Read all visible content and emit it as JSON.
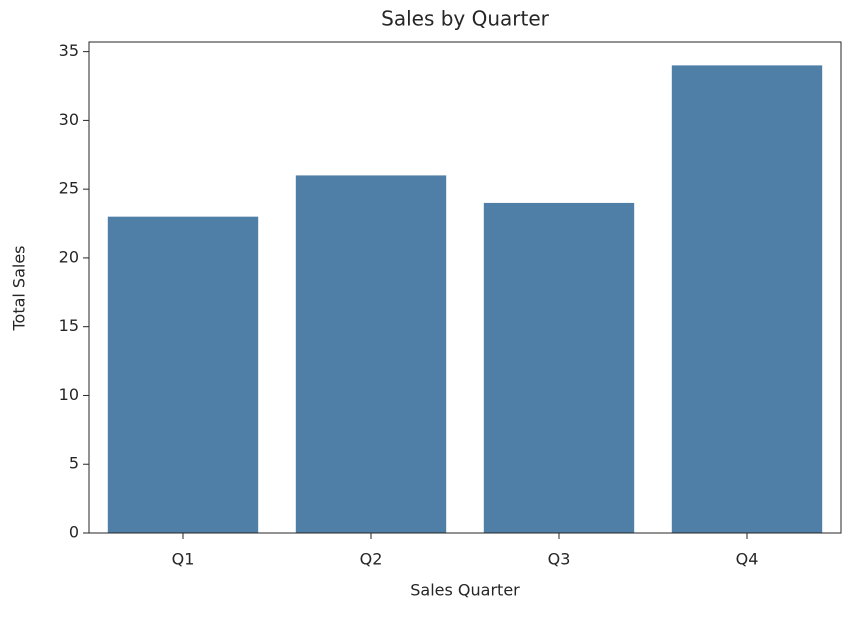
{
  "chart_data": {
    "type": "bar",
    "title": "Sales by Quarter",
    "x_label": "Sales Quarter",
    "y_label": "Total Sales",
    "categories": [
      "Q1",
      "Q2",
      "Q3",
      "Q4"
    ],
    "values": [
      23,
      26,
      24,
      34
    ],
    "color": "#4f7fa6",
    "ylim": [
      0,
      35.7
    ],
    "yticks": [
      0,
      5,
      10,
      15,
      20,
      25,
      30,
      35
    ],
    "grid": false
  }
}
